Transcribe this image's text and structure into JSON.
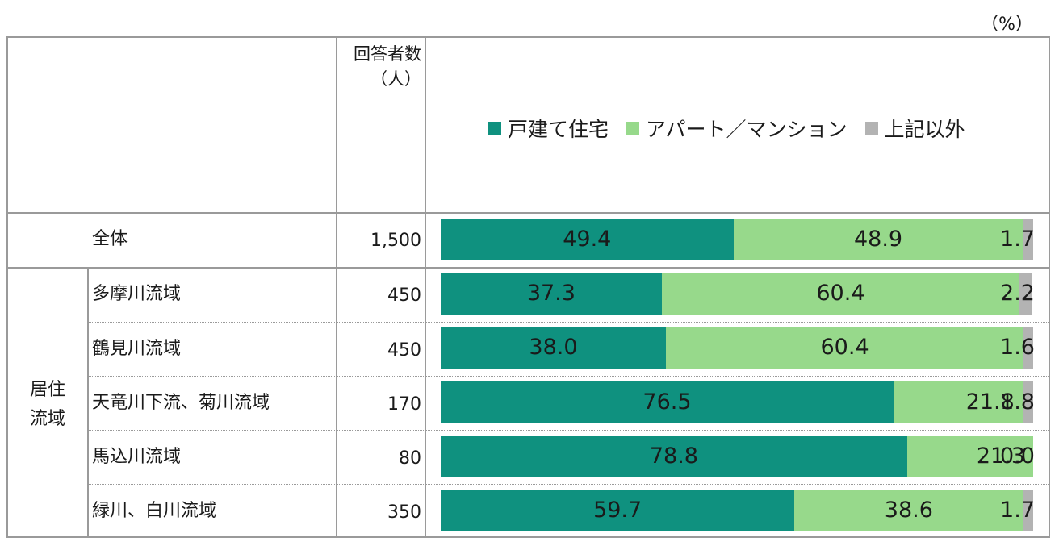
{
  "unit_label": "（%）",
  "header": {
    "respondents": "回答者数\n（人）"
  },
  "group_label": "居住\n流域",
  "colors": {
    "detached": "#0f917f",
    "apartment": "#97d98b",
    "other": "#b3b3b3"
  },
  "chart_data": {
    "type": "bar",
    "orientation": "horizontal",
    "stacked": true,
    "xlim": [
      0,
      100
    ],
    "categories": [
      "全体",
      "多摩川流域",
      "鶴見川流域",
      "天竜川下流、菊川流域",
      "馬込川流域",
      "緑川、白川流域"
    ],
    "respondents": [
      "1,500",
      "450",
      "450",
      "170",
      "80",
      "350"
    ],
    "series": [
      {
        "name": "戸建て住宅",
        "values": [
          49.4,
          37.3,
          38.0,
          76.5,
          78.8,
          59.7
        ]
      },
      {
        "name": "アパート／マンション",
        "values": [
          48.9,
          60.4,
          60.4,
          21.8,
          21.3,
          38.6
        ]
      },
      {
        "name": "上記以外",
        "values": [
          1.7,
          2.2,
          1.6,
          1.8,
          0.0,
          1.7
        ]
      }
    ],
    "legend_position": "top"
  }
}
